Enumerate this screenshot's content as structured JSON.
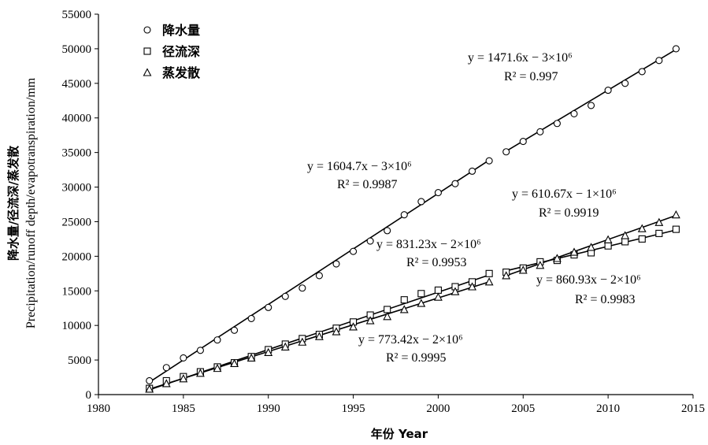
{
  "chart_data": {
    "type": "scatter",
    "xlabel": "年份 Year",
    "ylabel": "降水量/径流深/蒸发散",
    "ylabel2": "Precipitation/runoff depth/evapotranspiration/mm",
    "xlim": [
      1980,
      2015
    ],
    "ylim": [
      0,
      55000
    ],
    "xticks": [
      "1980",
      "1985",
      "1990",
      "1995",
      "2000",
      "2005",
      "2010",
      "2015"
    ],
    "yticks": [
      "0",
      "5000",
      "10000",
      "15000",
      "20000",
      "25000",
      "30000",
      "35000",
      "40000",
      "45000",
      "50000",
      "55000"
    ],
    "grid": false,
    "legend_position": "top-left",
    "x": [
      1983,
      1984,
      1985,
      1986,
      1987,
      1988,
      1989,
      1990,
      1991,
      1992,
      1993,
      1994,
      1995,
      1996,
      1997,
      1998,
      1999,
      2000,
      2001,
      2002,
      2003,
      2004,
      2005,
      2006,
      2007,
      2008,
      2009,
      2010,
      2011,
      2012,
      2013,
      2014
    ],
    "series": [
      {
        "name": "降水量",
        "marker": "circle",
        "values": [
          2000,
          3900,
          5300,
          6400,
          7900,
          9300,
          11000,
          12600,
          14200,
          15400,
          17200,
          18900,
          20700,
          22200,
          23700,
          26000,
          27900,
          29200,
          30500,
          32300,
          33800,
          35100,
          36600,
          38000,
          39200,
          40600,
          41800,
          44000,
          45000,
          46700,
          48300,
          50000
        ]
      },
      {
        "name": "径流深",
        "marker": "square",
        "values": [
          900,
          2000,
          2600,
          3300,
          4000,
          4600,
          5500,
          6500,
          7300,
          8100,
          8700,
          9600,
          10500,
          11500,
          12300,
          13700,
          14600,
          15100,
          15600,
          16300,
          17500,
          17700,
          18300,
          19200,
          19400,
          20200,
          20500,
          21500,
          22100,
          22500,
          23300,
          23900
        ]
      },
      {
        "name": "蒸发散",
        "marker": "triangle",
        "values": [
          800,
          1600,
          2300,
          3100,
          3800,
          4500,
          5300,
          6100,
          6900,
          7600,
          8400,
          9100,
          9800,
          10700,
          11300,
          12300,
          13200,
          14100,
          14900,
          15600,
          16300,
          17200,
          18000,
          18700,
          19700,
          20600,
          21300,
          22400,
          23000,
          24000,
          24900,
          26000
        ]
      }
    ],
    "trendlines": [
      {
        "series": "降水量",
        "x_range": [
          1983,
          2003
        ],
        "y_range": [
          1800,
          33900
        ],
        "equation": "y = 1604.7x − 3×10⁶",
        "r2": "R² = 0.9987"
      },
      {
        "series": "降水量",
        "x_range": [
          2004,
          2014
        ],
        "y_range": [
          35200,
          49900
        ],
        "equation": "y = 1471.6x − 3×10⁶",
        "r2": "R² = 0.997"
      },
      {
        "series": "径流深",
        "x_range": [
          1983,
          2003
        ],
        "y_range": [
          700,
          17300
        ],
        "equation": "y = 831.23x − 2×10⁶",
        "r2": "R² = 0.9953"
      },
      {
        "series": "径流深",
        "x_range": [
          2004,
          2014
        ],
        "y_range": [
          17900,
          23800
        ],
        "equation": "y = 610.67x − 1×10⁶",
        "r2": "R² = 0.9919"
      },
      {
        "series": "蒸发散",
        "x_range": [
          1983,
          2003
        ],
        "y_range": [
          800,
          16300
        ],
        "equation": "y = 773.42x − 2×10⁶",
        "r2": "R² = 0.9995"
      },
      {
        "series": "蒸发散",
        "x_range": [
          2004,
          2014
        ],
        "y_range": [
          17200,
          25900
        ],
        "equation": "y = 860.93x − 2×10⁶",
        "r2": "R² = 0.9983"
      }
    ]
  }
}
